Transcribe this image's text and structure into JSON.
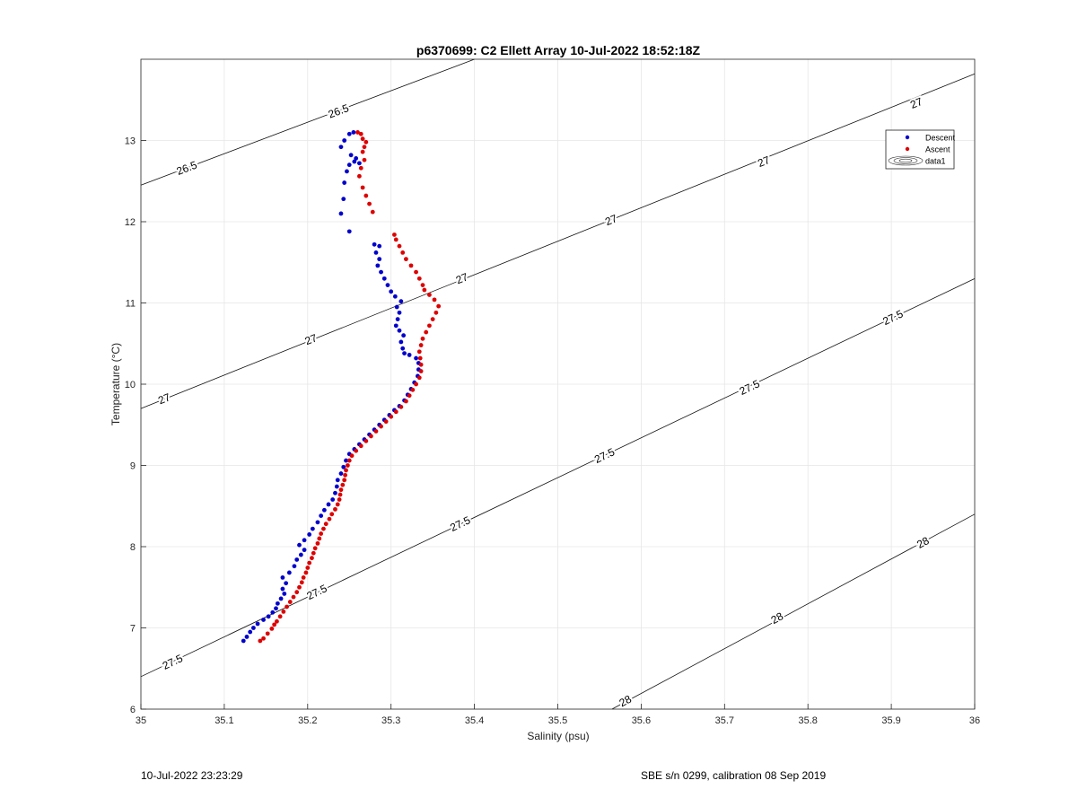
{
  "chart_data": {
    "type": "scatter",
    "title": "p6370699: C2 Ellett Array 10-Jul-2022 18:52:18Z",
    "xlabel": "Salinity (psu)",
    "ylabel": "Temperature (°C)",
    "xlim": [
      35,
      36
    ],
    "ylim": [
      6,
      14
    ],
    "xticks": [
      35,
      35.1,
      35.2,
      35.3,
      35.4,
      35.5,
      35.6,
      35.7,
      35.8,
      35.9,
      36
    ],
    "xtick_labels": [
      "35",
      "35.1",
      "35.2",
      "35.3",
      "35.4",
      "35.5",
      "35.6",
      "35.7",
      "35.8",
      "35.9",
      "36"
    ],
    "yticks": [
      6,
      7,
      8,
      9,
      10,
      11,
      12,
      13
    ],
    "ytick_labels": [
      "6",
      "7",
      "8",
      "9",
      "10",
      "11",
      "12",
      "13"
    ],
    "grid": true,
    "legend_position": "top-right",
    "legend": [
      "Descent",
      "Ascent",
      "data1"
    ],
    "series": [
      {
        "name": "Descent",
        "color": "#0000cc",
        "points": [
          [
            35.123,
            6.84
          ],
          [
            35.127,
            6.89
          ],
          [
            35.131,
            6.95
          ],
          [
            35.135,
            7.0
          ],
          [
            35.14,
            7.05
          ],
          [
            35.147,
            7.1
          ],
          [
            35.153,
            7.14
          ],
          [
            35.158,
            7.19
          ],
          [
            35.162,
            7.24
          ],
          [
            35.164,
            7.3
          ],
          [
            35.168,
            7.36
          ],
          [
            35.172,
            7.42
          ],
          [
            35.17,
            7.48
          ],
          [
            35.174,
            7.55
          ],
          [
            35.17,
            7.62
          ],
          [
            35.178,
            7.68
          ],
          [
            35.184,
            7.76
          ],
          [
            35.187,
            7.84
          ],
          [
            35.192,
            7.9
          ],
          [
            35.196,
            7.96
          ],
          [
            35.19,
            8.02
          ],
          [
            35.196,
            8.08
          ],
          [
            35.202,
            8.15
          ],
          [
            35.206,
            8.22
          ],
          [
            35.212,
            8.3
          ],
          [
            35.216,
            8.38
          ],
          [
            35.22,
            8.45
          ],
          [
            35.225,
            8.52
          ],
          [
            35.23,
            8.58
          ],
          [
            35.233,
            8.66
          ],
          [
            35.235,
            8.74
          ],
          [
            35.236,
            8.82
          ],
          [
            35.24,
            8.9
          ],
          [
            35.243,
            8.98
          ],
          [
            35.246,
            9.06
          ],
          [
            35.25,
            9.14
          ],
          [
            35.256,
            9.2
          ],
          [
            35.262,
            9.26
          ],
          [
            35.268,
            9.32
          ],
          [
            35.274,
            9.38
          ],
          [
            35.28,
            9.44
          ],
          [
            35.286,
            9.5
          ],
          [
            35.292,
            9.56
          ],
          [
            35.298,
            9.62
          ],
          [
            35.304,
            9.68
          ],
          [
            35.31,
            9.73
          ],
          [
            35.316,
            9.8
          ],
          [
            35.32,
            9.87
          ],
          [
            35.324,
            9.94
          ],
          [
            35.328,
            10.02
          ],
          [
            35.332,
            10.1
          ],
          [
            35.333,
            10.18
          ],
          [
            35.333,
            10.26
          ],
          [
            35.33,
            10.32
          ],
          [
            35.322,
            10.36
          ],
          [
            35.316,
            10.38
          ],
          [
            35.314,
            10.44
          ],
          [
            35.312,
            10.52
          ],
          [
            35.315,
            10.6
          ],
          [
            35.31,
            10.66
          ],
          [
            35.306,
            10.72
          ],
          [
            35.308,
            10.8
          ],
          [
            35.31,
            10.88
          ],
          [
            35.307,
            10.95
          ],
          [
            35.312,
            11.02
          ],
          [
            35.305,
            11.08
          ],
          [
            35.3,
            11.14
          ],
          [
            35.296,
            11.22
          ],
          [
            35.292,
            11.3
          ],
          [
            35.288,
            11.38
          ],
          [
            35.284,
            11.46
          ],
          [
            35.286,
            11.54
          ],
          [
            35.282,
            11.62
          ],
          [
            35.286,
            11.7
          ],
          [
            35.28,
            11.72
          ],
          [
            35.25,
            11.88
          ],
          [
            35.24,
            12.1
          ],
          [
            35.243,
            12.28
          ],
          [
            35.244,
            12.48
          ],
          [
            35.247,
            12.62
          ],
          [
            35.25,
            12.7
          ],
          [
            35.256,
            12.74
          ],
          [
            35.262,
            12.72
          ],
          [
            35.258,
            12.78
          ],
          [
            35.252,
            12.82
          ],
          [
            35.24,
            12.92
          ],
          [
            35.244,
            13.0
          ],
          [
            35.25,
            13.08
          ],
          [
            35.255,
            13.1
          ]
        ]
      },
      {
        "name": "Ascent",
        "color": "#dd0000",
        "points": [
          [
            35.143,
            6.84
          ],
          [
            35.147,
            6.87
          ],
          [
            35.152,
            6.93
          ],
          [
            35.157,
            6.99
          ],
          [
            35.16,
            7.04
          ],
          [
            35.163,
            7.08
          ],
          [
            35.167,
            7.14
          ],
          [
            35.171,
            7.2
          ],
          [
            35.175,
            7.26
          ],
          [
            35.179,
            7.32
          ],
          [
            35.183,
            7.38
          ],
          [
            35.187,
            7.44
          ],
          [
            35.19,
            7.5
          ],
          [
            35.193,
            7.56
          ],
          [
            35.195,
            7.62
          ],
          [
            35.198,
            7.68
          ],
          [
            35.2,
            7.74
          ],
          [
            35.202,
            7.8
          ],
          [
            35.205,
            7.86
          ],
          [
            35.207,
            7.92
          ],
          [
            35.209,
            7.98
          ],
          [
            35.212,
            8.04
          ],
          [
            35.214,
            8.1
          ],
          [
            35.216,
            8.16
          ],
          [
            35.219,
            8.22
          ],
          [
            35.222,
            8.28
          ],
          [
            35.226,
            8.34
          ],
          [
            35.229,
            8.4
          ],
          [
            35.233,
            8.46
          ],
          [
            35.236,
            8.52
          ],
          [
            35.238,
            8.58
          ],
          [
            35.239,
            8.64
          ],
          [
            35.24,
            8.7
          ],
          [
            35.242,
            8.76
          ],
          [
            35.244,
            8.82
          ],
          [
            35.245,
            8.88
          ],
          [
            35.246,
            8.94
          ],
          [
            35.248,
            9.0
          ],
          [
            35.25,
            9.06
          ],
          [
            35.253,
            9.12
          ],
          [
            35.258,
            9.18
          ],
          [
            35.264,
            9.24
          ],
          [
            35.27,
            9.3
          ],
          [
            35.276,
            9.36
          ],
          [
            35.282,
            9.42
          ],
          [
            35.288,
            9.48
          ],
          [
            35.294,
            9.54
          ],
          [
            35.3,
            9.6
          ],
          [
            35.306,
            9.66
          ],
          [
            35.312,
            9.72
          ],
          [
            35.318,
            9.79
          ],
          [
            35.322,
            9.86
          ],
          [
            35.326,
            9.93
          ],
          [
            35.33,
            10.0
          ],
          [
            35.334,
            10.08
          ],
          [
            35.336,
            10.16
          ],
          [
            35.336,
            10.24
          ],
          [
            35.335,
            10.32
          ],
          [
            35.334,
            10.4
          ],
          [
            35.336,
            10.48
          ],
          [
            35.338,
            10.56
          ],
          [
            35.342,
            10.64
          ],
          [
            35.346,
            10.72
          ],
          [
            35.35,
            10.8
          ],
          [
            35.354,
            10.88
          ],
          [
            35.357,
            10.96
          ],
          [
            35.352,
            11.04
          ],
          [
            35.346,
            11.1
          ],
          [
            35.34,
            11.16
          ],
          [
            35.338,
            11.22
          ],
          [
            35.334,
            11.3
          ],
          [
            35.33,
            11.38
          ],
          [
            35.324,
            11.46
          ],
          [
            35.318,
            11.54
          ],
          [
            35.314,
            11.62
          ],
          [
            35.31,
            11.7
          ],
          [
            35.306,
            11.78
          ],
          [
            35.304,
            11.84
          ],
          [
            35.278,
            12.12
          ],
          [
            35.274,
            12.22
          ],
          [
            35.27,
            12.32
          ],
          [
            35.266,
            12.42
          ],
          [
            35.262,
            12.56
          ],
          [
            35.264,
            12.66
          ],
          [
            35.268,
            12.76
          ],
          [
            35.266,
            12.86
          ],
          [
            35.268,
            12.92
          ],
          [
            35.27,
            12.98
          ],
          [
            35.266,
            13.02
          ],
          [
            35.264,
            13.08
          ],
          [
            35.26,
            13.1
          ]
        ]
      }
    ],
    "contours": [
      {
        "label": "26.5",
        "path": [
          [
            35.0,
            12.45
          ],
          [
            35.4,
            14.0
          ]
        ],
        "labels_at": [
          [
            35.055,
            12.66
          ],
          [
            35.237,
            13.36
          ]
        ]
      },
      {
        "label": "27",
        "path": [
          [
            35.0,
            9.7
          ],
          [
            36.0,
            13.82
          ]
        ],
        "labels_at": [
          [
            35.028,
            9.82
          ],
          [
            35.204,
            10.55
          ],
          [
            35.385,
            11.3
          ],
          [
            35.564,
            12.02
          ],
          [
            35.747,
            12.74
          ],
          [
            35.93,
            13.46
          ]
        ]
      },
      {
        "label": "27.5",
        "path": [
          [
            35.0,
            6.4
          ],
          [
            36.0,
            11.3
          ]
        ],
        "labels_at": [
          [
            35.038,
            6.58
          ],
          [
            35.211,
            7.44
          ],
          [
            35.383,
            8.28
          ],
          [
            35.556,
            9.12
          ],
          [
            35.73,
            9.96
          ],
          [
            35.902,
            10.82
          ]
        ]
      },
      {
        "label": "28",
        "path": [
          [
            35.565,
            6.0
          ],
          [
            36.0,
            8.4
          ]
        ],
        "labels_at": [
          [
            35.581,
            6.1
          ],
          [
            35.763,
            7.12
          ],
          [
            35.938,
            8.05
          ]
        ]
      }
    ]
  },
  "footer": {
    "left": "10-Jul-2022 23:23:29",
    "right": "SBE s/n 0299, calibration 08 Sep 2019"
  }
}
